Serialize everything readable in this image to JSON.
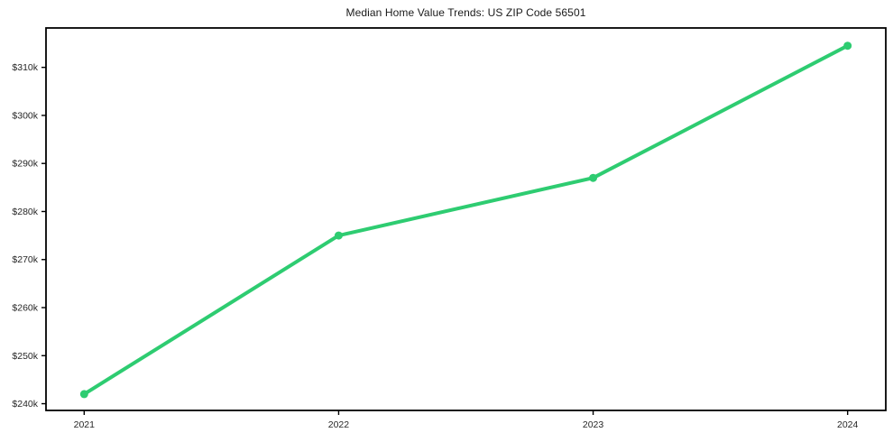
{
  "chart_data": {
    "type": "line",
    "title": "Median Home Value Trends: US ZIP Code 56501",
    "series": [
      {
        "name": "Median Home Value",
        "x": [
          2021,
          2022,
          2023,
          2024
        ],
        "values": [
          242000,
          275000,
          287000,
          314500
        ]
      }
    ],
    "xticks": [
      {
        "value": 2021,
        "label": "2021"
      },
      {
        "value": 2022,
        "label": "2022"
      },
      {
        "value": 2023,
        "label": "2023"
      },
      {
        "value": 2024,
        "label": "2024"
      }
    ],
    "yticks": [
      {
        "value": 240000,
        "label": "$240k"
      },
      {
        "value": 250000,
        "label": "$250k"
      },
      {
        "value": 260000,
        "label": "$260k"
      },
      {
        "value": 270000,
        "label": "$270k"
      },
      {
        "value": 280000,
        "label": "$280k"
      },
      {
        "value": 290000,
        "label": "$290k"
      },
      {
        "value": 300000,
        "label": "$300k"
      },
      {
        "value": 310000,
        "label": "$310k"
      }
    ],
    "xlim": [
      2020.85,
      2024.15
    ],
    "ylim": [
      238600,
      318200
    ],
    "grid": false,
    "legend_position": "none",
    "line_color": "#2ecc71",
    "marker_color": "#2ecc71",
    "frame_color": "#000000",
    "tick_label_color": "#262626",
    "background_color": "#ffffff"
  }
}
